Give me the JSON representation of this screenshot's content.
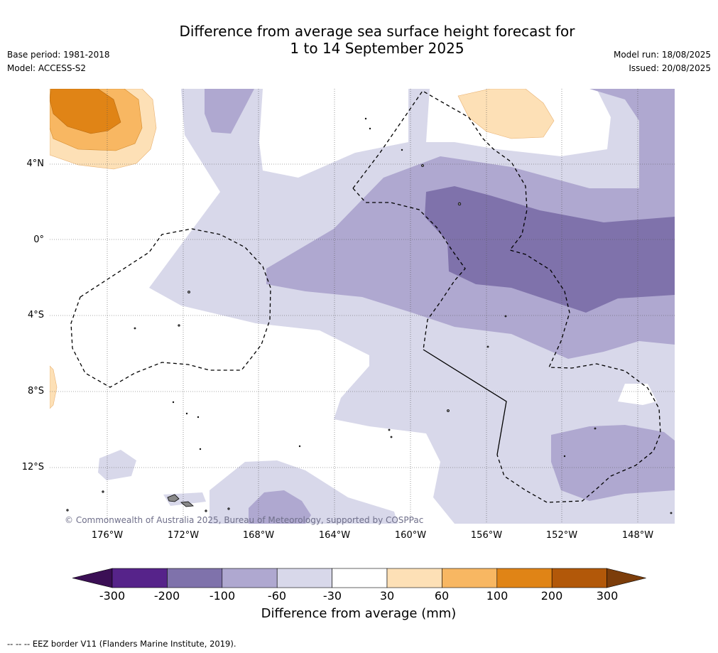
{
  "title_line1": "Difference from average sea surface height forecast for",
  "title_line2": "1 to 14 September 2025",
  "base_period": "Base period: 1981-2018",
  "model": "Model: ACCESS-S2",
  "model_run": "Model run: 18/08/2025",
  "issued": "Issued: 20/08/2025",
  "copyright": "© Commonwealth of Australia 2025, Bureau of Meteorology, supported by COSPPac",
  "lat_labels": [
    "4°N",
    "0°",
    "4°S",
    "8°S",
    "12°S"
  ],
  "lon_labels": [
    "176°W",
    "172°W",
    "168°W",
    "164°W",
    "160°W",
    "156°W",
    "152°W",
    "148°W"
  ],
  "colorbar": {
    "title": "Difference from average (mm)",
    "ticks": [
      "-300",
      "-200",
      "-100",
      "-60",
      "-30",
      "30",
      "60",
      "100",
      "200",
      "300"
    ],
    "colors": [
      "#3b0f55",
      "#56238a",
      "#7f72ab",
      "#afa8d0",
      "#d8d8ea",
      "#ffffff",
      "#fde0b6",
      "#f8b762",
      "#e08416",
      "#b25809",
      "#7c3d0a"
    ]
  },
  "footnote": "--  --  -- EEZ border V11 (Flanders Marine Institute, 2019)."
}
